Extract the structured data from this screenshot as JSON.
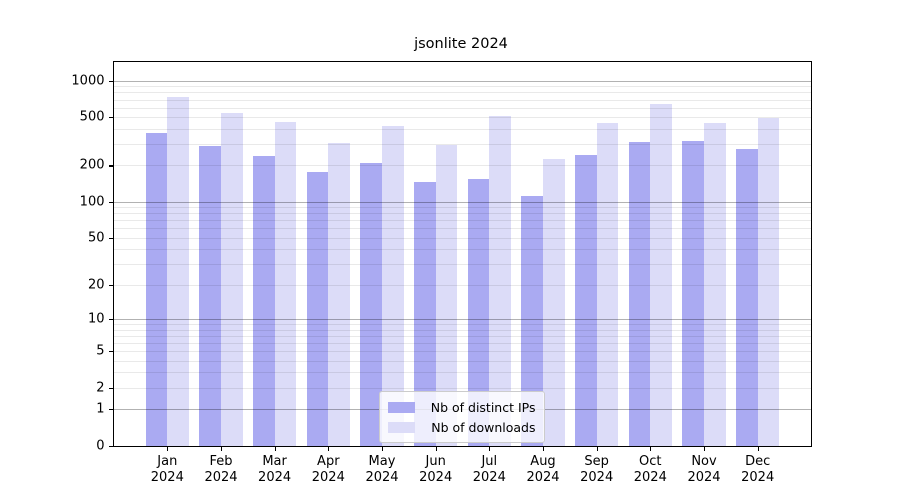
{
  "chart_data": {
    "type": "bar",
    "title": "jsonlite 2024",
    "y_scale": "log10(1+x)",
    "categories": [
      "Jan",
      "Feb",
      "Mar",
      "Apr",
      "May",
      "Jun",
      "Jul",
      "Aug",
      "Sep",
      "Oct",
      "Nov",
      "Dec"
    ],
    "year": "2024",
    "series": [
      {
        "name": "Nb of distinct IPs",
        "color": "#aaaaf2",
        "values": [
          373,
          292,
          241,
          178,
          209,
          147,
          155,
          111,
          245,
          315,
          318,
          272
        ]
      },
      {
        "name": "Nb of downloads",
        "color": "#dcdcf8",
        "values": [
          730,
          542,
          454,
          309,
          426,
          296,
          515,
          227,
          446,
          639,
          452,
          490
        ]
      }
    ],
    "y_ticks": [
      0,
      1,
      2,
      5,
      10,
      20,
      50,
      100,
      200,
      500,
      1000
    ],
    "ylim": [
      0,
      1400
    ],
    "grid": "major and minor horizontal gridlines, drawn over bars",
    "legend_position": "lower center",
    "major_grid_values": [
      1,
      10,
      100,
      1000
    ],
    "axis_color": "#000000",
    "background_color": "#ffffff"
  }
}
